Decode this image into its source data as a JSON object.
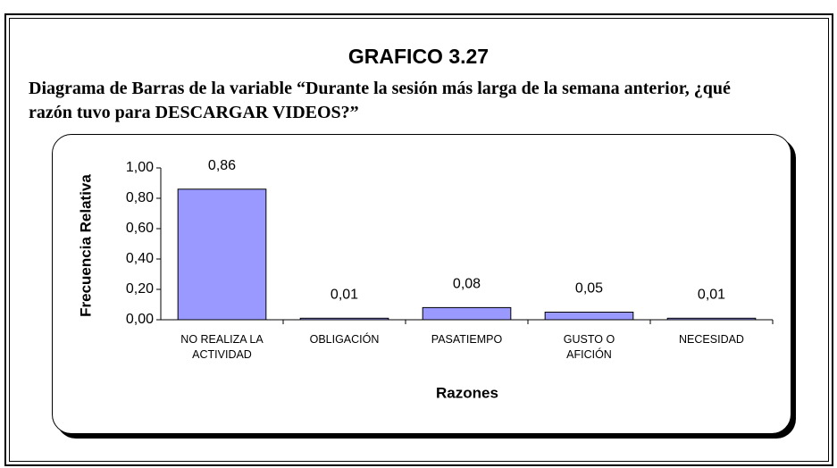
{
  "chart_data": {
    "type": "bar",
    "title": "GRAFICO 3.27",
    "subtitle": "Diagrama de Barras de la variable “Durante la sesión más larga de la semana anterior, ¿qué razón tuvo para DESCARGAR VIDEOS?”",
    "x_label": "Razones",
    "y_label": "Frecuencia Relativa",
    "categories": [
      "NO REALIZA LA ACTIVIDAD",
      "OBLIGACIÓN",
      "PASATIEMPO",
      "GUSTO O AFICIÓN",
      "NECESIDAD"
    ],
    "values": [
      0.86,
      0.01,
      0.08,
      0.05,
      0.01
    ],
    "value_labels": [
      "0,86",
      "0,01",
      "0,08",
      "0,05",
      "0,01"
    ],
    "color": "#9999ff",
    "ylim": [
      0,
      1
    ],
    "yticks": [
      {
        "value": 0,
        "label": "0,00"
      },
      {
        "value": 0.2,
        "label": "0,20"
      },
      {
        "value": 0.4,
        "label": "0,40"
      },
      {
        "value": 0.6,
        "label": "0,60"
      },
      {
        "value": 0.8,
        "label": "0,80"
      },
      {
        "value": 1,
        "label": "1,00"
      }
    ]
  }
}
